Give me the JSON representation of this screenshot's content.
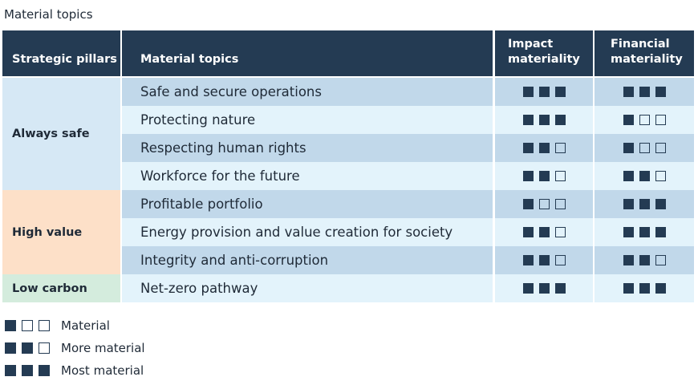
{
  "caption": "Material topics",
  "header": {
    "pillars": "Strategic pillars",
    "topics": "Material topics",
    "impact_line1": "Impact",
    "impact_line2": "materiality",
    "financial_line1": "Financial",
    "financial_line2": "materiality"
  },
  "colors": {
    "header_bg": "#243b53",
    "always_safe_bg": "#d6e8f5",
    "high_value_bg": "#fde0c8",
    "low_carbon_bg": "#d4ecdd",
    "row_shade": "#c1d8ea",
    "row_light": "#e3f3fb"
  },
  "pillars": [
    {
      "label": "Always safe",
      "rows": 4
    },
    {
      "label": "High value",
      "rows": 3
    },
    {
      "label": "Low carbon",
      "rows": 1
    }
  ],
  "rows": [
    {
      "topic": "Safe and secure operations",
      "impact": 3,
      "financial": 3
    },
    {
      "topic": "Protecting nature",
      "impact": 3,
      "financial": 1
    },
    {
      "topic": "Respecting human rights",
      "impact": 2,
      "financial": 1
    },
    {
      "topic": "Workforce for the future",
      "impact": 2,
      "financial": 2
    },
    {
      "topic": "Profitable portfolio",
      "impact": 1,
      "financial": 3
    },
    {
      "topic": "Energy provision and value creation for society",
      "impact": 2,
      "financial": 3
    },
    {
      "topic": "Integrity and anti-corruption",
      "impact": 2,
      "financial": 2
    },
    {
      "topic": "Net-zero pathway",
      "impact": 3,
      "financial": 3
    }
  ],
  "legend": [
    {
      "level": 1,
      "label": "Material"
    },
    {
      "level": 2,
      "label": "More material"
    },
    {
      "level": 3,
      "label": "Most material"
    }
  ]
}
